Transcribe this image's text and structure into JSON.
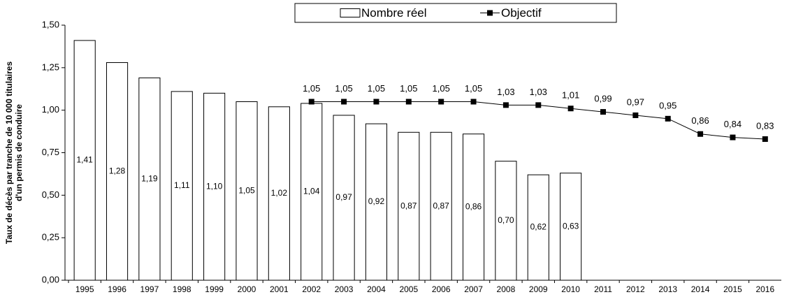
{
  "chart_data": {
    "type": "bar",
    "ylabel": [
      "Taux de décès par tranche de 10 000 titulaires",
      "d'un permis de conduire"
    ],
    "categories": [
      "1995",
      "1996",
      "1997",
      "1998",
      "1999",
      "2000",
      "2001",
      "2002",
      "2003",
      "2004",
      "2005",
      "2006",
      "2007",
      "2008",
      "2009",
      "2010",
      "2011",
      "2012",
      "2013",
      "2014",
      "2015",
      "2016"
    ],
    "series": [
      {
        "name": "Nombre réel",
        "type": "bar",
        "color": "#ffffff",
        "values": [
          1.41,
          1.28,
          1.19,
          1.11,
          1.1,
          1.05,
          1.02,
          1.04,
          0.97,
          0.92,
          0.87,
          0.87,
          0.86,
          0.7,
          0.62,
          0.63,
          null,
          null,
          null,
          null,
          null,
          null
        ],
        "value_labels": [
          "1,41",
          "1,28",
          "1,19",
          "1,11",
          "1,10",
          "1,05",
          "1,02",
          "1,04",
          "0,97",
          "0,92",
          "0,87",
          "0,87",
          "0,86",
          "0,70",
          "0,62",
          "0,63",
          null,
          null,
          null,
          null,
          null,
          null
        ]
      },
      {
        "name": "Objectif",
        "type": "line",
        "color": "#000000",
        "values": [
          null,
          null,
          null,
          null,
          null,
          null,
          null,
          1.05,
          1.05,
          1.05,
          1.05,
          1.05,
          1.05,
          1.03,
          1.03,
          1.01,
          0.99,
          0.97,
          0.95,
          0.86,
          0.84,
          0.83
        ],
        "value_labels": [
          null,
          null,
          null,
          null,
          null,
          null,
          null,
          "1,05",
          "1,05",
          "1,05",
          "1,05",
          "1,05",
          "1,05",
          "1,03",
          "1,03",
          "1,01",
          "0,99",
          "0,97",
          "0,95",
          "0,86",
          "0,84",
          "0,83"
        ]
      }
    ],
    "ylim": [
      0,
      1.5
    ],
    "yticks": [
      {
        "value": 0,
        "label": "0,00"
      },
      {
        "value": 0.25,
        "label": "0,25"
      },
      {
        "value": 0.5,
        "label": "0,50"
      },
      {
        "value": 0.75,
        "label": "0,75"
      },
      {
        "value": 1,
        "label": "1,00"
      },
      {
        "value": 1.25,
        "label": "1,25"
      },
      {
        "value": 1.5,
        "label": "1,50"
      }
    ],
    "grid": false,
    "legend": "top"
  }
}
